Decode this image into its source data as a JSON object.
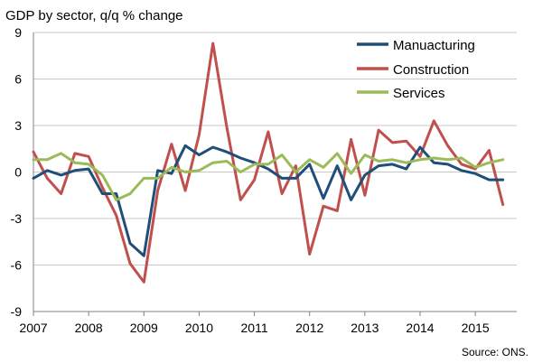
{
  "chart_data": {
    "type": "line",
    "title": "GDP by sector, q/q % change",
    "source": "Source: ONS.",
    "legend_position": "top-right",
    "grid": true,
    "ylim": [
      -9,
      9
    ],
    "yticks": [
      9,
      6,
      3,
      0,
      -3,
      -6,
      -9
    ],
    "xlim": [
      2007,
      2015.75
    ],
    "years": [
      "2007",
      "2008",
      "2009",
      "2010",
      "2011",
      "2012",
      "2013",
      "2014",
      "2015"
    ],
    "x": [
      2007.0,
      2007.25,
      2007.5,
      2007.75,
      2008.0,
      2008.25,
      2008.5,
      2008.75,
      2009.0,
      2009.25,
      2009.5,
      2009.75,
      2010.0,
      2010.25,
      2010.5,
      2010.75,
      2011.0,
      2011.25,
      2011.5,
      2011.75,
      2012.0,
      2012.25,
      2012.5,
      2012.75,
      2013.0,
      2013.25,
      2013.5,
      2013.75,
      2014.0,
      2014.25,
      2014.5,
      2014.75,
      2015.0,
      2015.25,
      2015.5
    ],
    "series": [
      {
        "name": "Manuacturing",
        "color": "#1f4e79",
        "values": [
          -0.4,
          0.1,
          -0.2,
          0.1,
          0.2,
          -1.4,
          -1.4,
          -4.6,
          -5.4,
          0.1,
          -0.1,
          1.7,
          1.1,
          1.6,
          1.3,
          0.9,
          0.6,
          0.2,
          -0.4,
          -0.4,
          0.5,
          -1.7,
          0.4,
          -1.8,
          -0.2,
          0.4,
          0.5,
          0.2,
          1.6,
          0.6,
          0.5,
          0.1,
          -0.1,
          -0.5,
          -0.5
        ]
      },
      {
        "name": "Construction",
        "color": "#c0504d",
        "values": [
          1.3,
          -0.4,
          -1.4,
          1.2,
          1.0,
          -1.0,
          -2.8,
          -5.9,
          -7.1,
          -1.2,
          1.8,
          -1.2,
          2.4,
          8.3,
          2.9,
          -1.8,
          -0.5,
          2.6,
          -1.4,
          0.4,
          -5.3,
          -2.2,
          -2.5,
          2.1,
          -1.5,
          2.7,
          1.9,
          2.0,
          1.0,
          3.3,
          1.7,
          0.5,
          0.2,
          1.4,
          -2.1
        ]
      },
      {
        "name": "Services",
        "color": "#9bbb59",
        "values": [
          0.8,
          0.8,
          1.2,
          0.6,
          0.5,
          -0.2,
          -1.8,
          -1.4,
          -0.4,
          -0.4,
          0.3,
          0.0,
          0.1,
          0.6,
          0.7,
          0.0,
          0.5,
          0.5,
          1.1,
          0.0,
          0.8,
          0.3,
          1.2,
          -0.1,
          1.1,
          0.7,
          0.8,
          0.6,
          0.8,
          0.9,
          0.8,
          0.9,
          0.3,
          0.6,
          0.8
        ]
      }
    ]
  }
}
